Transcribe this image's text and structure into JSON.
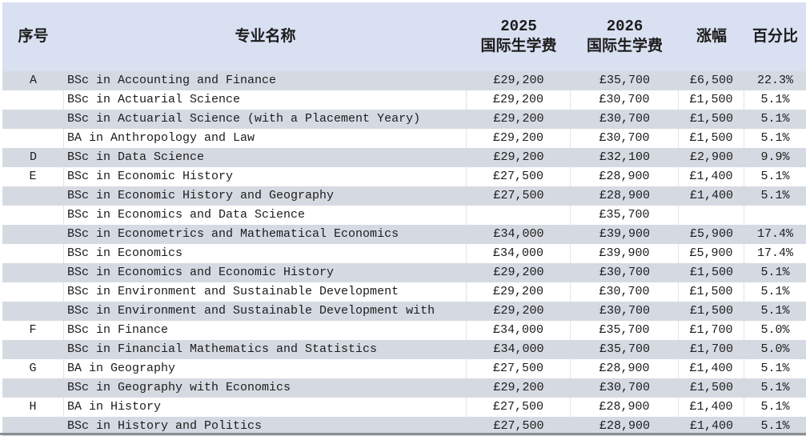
{
  "table": {
    "header": {
      "index": "序号",
      "name": "专业名称",
      "fee2025_line1": "2025",
      "fee2025_line2": "国际生学费",
      "fee2026_line1": "2026",
      "fee2026_line2": "国际生学费",
      "increase": "涨幅",
      "percent": "百分比"
    },
    "rows": [
      {
        "index": "A",
        "name": "BSc in Accounting and Finance",
        "fee2025": "£29,200",
        "fee2026": "£35,700",
        "increase": "£6,500",
        "percent": "22.3%"
      },
      {
        "index": "",
        "name": "BSc in Actuarial Science",
        "fee2025": "£29,200",
        "fee2026": "£30,700",
        "increase": "£1,500",
        "percent": "5.1%"
      },
      {
        "index": "",
        "name": "BSc in Actuarial Science (with a Placement Yeary)",
        "fee2025": "£29,200",
        "fee2026": "£30,700",
        "increase": "£1,500",
        "percent": "5.1%"
      },
      {
        "index": "",
        "name": "BA in Anthropology and Law",
        "fee2025": "£29,200",
        "fee2026": "£30,700",
        "increase": "£1,500",
        "percent": "5.1%"
      },
      {
        "index": "D",
        "name": "BSc in Data Science",
        "fee2025": "£29,200",
        "fee2026": "£32,100",
        "increase": "£2,900",
        "percent": "9.9%"
      },
      {
        "index": "E",
        "name": "BSc in Economic History",
        "fee2025": "£27,500",
        "fee2026": "£28,900",
        "increase": "£1,400",
        "percent": "5.1%"
      },
      {
        "index": "",
        "name": "BSc in Economic History and Geography",
        "fee2025": "£27,500",
        "fee2026": "£28,900",
        "increase": "£1,400",
        "percent": "5.1%"
      },
      {
        "index": "",
        "name": "BSc in Economics and Data Science",
        "fee2025": "",
        "fee2026": "£35,700",
        "increase": "",
        "percent": ""
      },
      {
        "index": "",
        "name": "BSc in Econometrics and Mathematical Economics",
        "fee2025": "£34,000",
        "fee2026": "£39,900",
        "increase": "£5,900",
        "percent": "17.4%"
      },
      {
        "index": "",
        "name": "BSc in Economics",
        "fee2025": "£34,000",
        "fee2026": "£39,900",
        "increase": "£5,900",
        "percent": "17.4%"
      },
      {
        "index": "",
        "name": "BSc in Economics and Economic History",
        "fee2025": "£29,200",
        "fee2026": "£30,700",
        "increase": "£1,500",
        "percent": "5.1%"
      },
      {
        "index": "",
        "name": "BSc in Environment and Sustainable Development",
        "fee2025": "£29,200",
        "fee2026": "£30,700",
        "increase": "£1,500",
        "percent": "5.1%"
      },
      {
        "index": "",
        "name": "BSc in Environment and Sustainable Development with",
        "fee2025": "£29,200",
        "fee2026": "£30,700",
        "increase": "£1,500",
        "percent": "5.1%"
      },
      {
        "index": "F",
        "name": "BSc in Finance",
        "fee2025": "£34,000",
        "fee2026": "£35,700",
        "increase": "£1,700",
        "percent": "5.0%"
      },
      {
        "index": "",
        "name": "BSc in Financial Mathematics and Statistics",
        "fee2025": "£34,000",
        "fee2026": "£35,700",
        "increase": "£1,700",
        "percent": "5.0%"
      },
      {
        "index": "G",
        "name": "BA in Geography",
        "fee2025": "£27,500",
        "fee2026": "£28,900",
        "increase": "£1,400",
        "percent": "5.1%"
      },
      {
        "index": "",
        "name": "BSc in Geography with Economics",
        "fee2025": "£29,200",
        "fee2026": "£30,700",
        "increase": "£1,500",
        "percent": "5.1%"
      },
      {
        "index": "H",
        "name": "BA in History",
        "fee2025": "£27,500",
        "fee2026": "£28,900",
        "increase": "£1,400",
        "percent": "5.1%"
      },
      {
        "index": "",
        "name": "BSc in History and Politics",
        "fee2025": "£27,500",
        "fee2026": "£28,900",
        "increase": "£1,400",
        "percent": "5.1%"
      }
    ],
    "colors": {
      "header_bg": "#d9e0f1",
      "stripe_bg": "#d5dae2",
      "grid_line": "#e0e3e8",
      "bottom_bar": "#8b8e93"
    }
  }
}
